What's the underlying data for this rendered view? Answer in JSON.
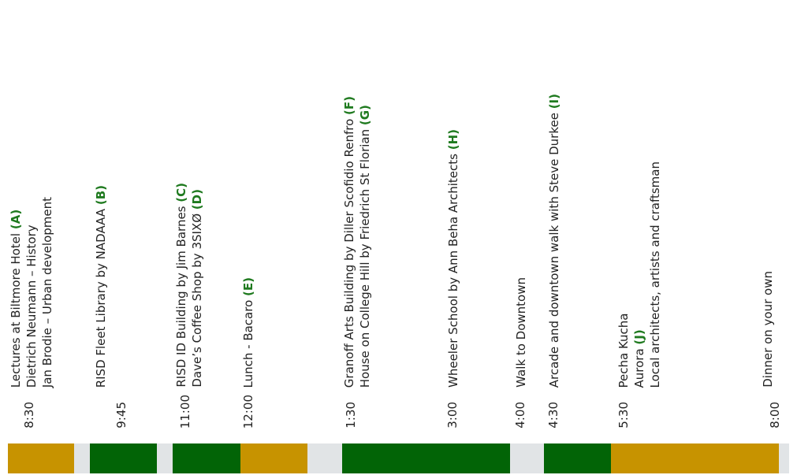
{
  "colors": {
    "gold": "#C79300",
    "green": "#026406",
    "grey": "#E1E4E6",
    "tag": "#1F7A1F"
  },
  "schedule": [
    {
      "time": "8:30",
      "lines": [
        {
          "text": "Lectures at Biltmore Hotel ",
          "tag": "(A)"
        },
        {
          "text": "Dietrich Neumann – History",
          "tag": ""
        },
        {
          "text": "Jan Brodie – Urban development",
          "tag": ""
        }
      ]
    },
    {
      "time": "9:45",
      "lines": [
        {
          "text": "RISD Fleet Library by NADAAA ",
          "tag": "(B)"
        }
      ]
    },
    {
      "time": "11:00",
      "lines": [
        {
          "text": "RISD ID Building by Jim Barnes ",
          "tag": "(C)"
        },
        {
          "text": "Dave’s Coffee Shop by 3SIXØ ",
          "tag": "(D)"
        }
      ]
    },
    {
      "time": "12:00",
      "lines": [
        {
          "text": "Lunch - Bacaro ",
          "tag": "(E)"
        }
      ]
    },
    {
      "time": "1:30",
      "lines": [
        {
          "text": "Granoff Arts Building by Diller Scofidio Renfro ",
          "tag": "(F)"
        },
        {
          "text": "House on College Hill by Friedrich St Florian ",
          "tag": "(G)"
        }
      ]
    },
    {
      "time": "3:00",
      "lines": [
        {
          "text": "Wheeler School by Ann Beha Architects ",
          "tag": "(H)"
        }
      ]
    },
    {
      "time": "4:00",
      "lines": [
        {
          "text": "Walk to Downtown",
          "tag": ""
        }
      ]
    },
    {
      "time": "4:30",
      "lines": [
        {
          "text": "Arcade and downtown walk with Steve Durkee ",
          "tag": "(I)"
        }
      ]
    },
    {
      "time": "5:30",
      "lines": [
        {
          "text": "Pecha Kucha",
          "tag": ""
        },
        {
          "text": "Aurora ",
          "tag": "(J)"
        },
        {
          "text": "Local architects, artists and craftsman",
          "tag": ""
        }
      ]
    },
    {
      "time": "8:00",
      "lines": [
        {
          "text": "Dinner on your own",
          "tag": ""
        }
      ]
    }
  ],
  "timeline_bar": [
    {
      "color": "gold",
      "span_minutes": 75
    },
    {
      "color": "grey",
      "span_minutes": 15
    },
    {
      "color": "green",
      "span_minutes": 75
    },
    {
      "color": "grey",
      "span_minutes": 15
    },
    {
      "color": "green",
      "span_minutes": 75
    },
    {
      "color": "gold",
      "span_minutes": 75
    },
    {
      "color": "grey",
      "span_minutes": 30
    },
    {
      "color": "green",
      "span_minutes": 180
    },
    {
      "color": "grey",
      "span_minutes": 30
    },
    {
      "color": "green",
      "span_minutes": 75
    },
    {
      "color": "gold",
      "span_minutes": 180
    },
    {
      "color": "grey",
      "span_minutes": 15
    }
  ]
}
